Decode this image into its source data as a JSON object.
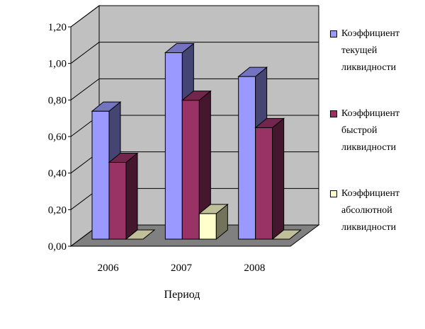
{
  "chart_data": {
    "type": "bar",
    "categories": [
      "2006",
      "2007",
      "2008"
    ],
    "series": [
      {
        "name": "Коэффициент текущей ликвидности",
        "values": [
          0.7,
          1.02,
          0.89
        ],
        "color": "#9999ff"
      },
      {
        "name": "Коэффициент быстрой ликвидности",
        "values": [
          0.42,
          0.76,
          0.61
        ],
        "color": "#993366"
      },
      {
        "name": "Коэффициент абсолютной ликвидности",
        "values": [
          0.0,
          0.14,
          0.0
        ],
        "color": "#ffffcc"
      }
    ],
    "yticks": [
      "0,00",
      "0,20",
      "0,40",
      "0,60",
      "0,80",
      "1,00",
      "1,20"
    ],
    "ylim": [
      0,
      1.2
    ],
    "xlabel": "Период",
    "ylabel": "",
    "title": "",
    "grid": true,
    "legend_position": "right",
    "three_d": true,
    "wall_color": "#c0c0c0",
    "floor_color": "#808080"
  }
}
